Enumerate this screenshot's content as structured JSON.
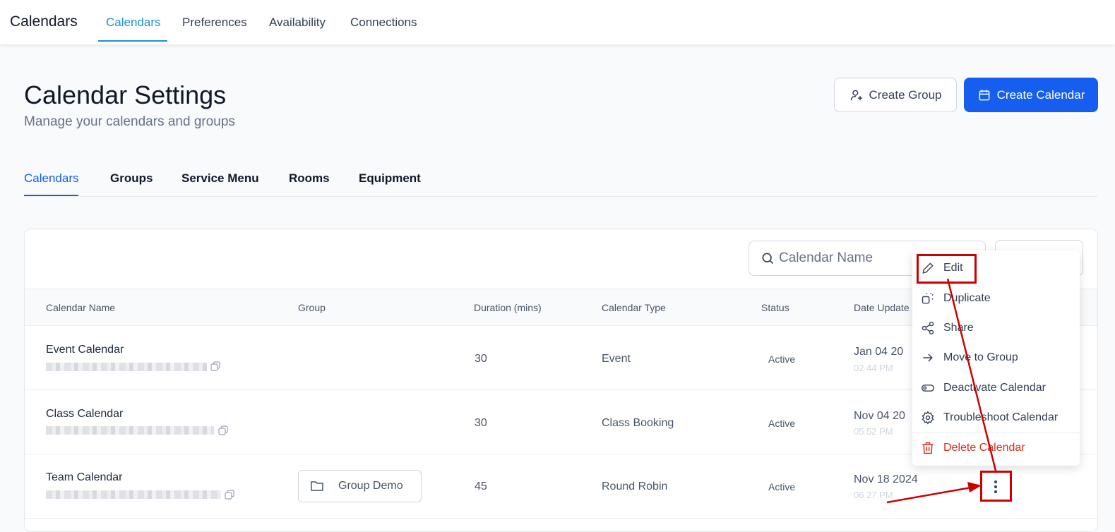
{
  "topnav": {
    "brand": "Calendars",
    "items": [
      {
        "label": "Calendars",
        "active": true
      },
      {
        "label": "Preferences"
      },
      {
        "label": "Availability"
      },
      {
        "label": "Connections"
      }
    ]
  },
  "header": {
    "title": "Calendar Settings",
    "subtitle": "Manage your calendars and groups",
    "create_group": "Create Group",
    "create_calendar": "Create Calendar"
  },
  "tabs": [
    {
      "label": "Calendars",
      "active": true
    },
    {
      "label": "Groups"
    },
    {
      "label": "Service Menu"
    },
    {
      "label": "Rooms"
    },
    {
      "label": "Equipment"
    }
  ],
  "search": {
    "placeholder": "Calendar Name"
  },
  "table": {
    "columns": [
      "Calendar Name",
      "Group",
      "Duration (mins)",
      "Calendar Type",
      "Status",
      "Date Update"
    ],
    "rows": [
      {
        "name": "Event Calendar",
        "group": "",
        "duration": "30",
        "type": "Event",
        "status": "Active",
        "date": "Jan 04 20",
        "time": "02 44 PM"
      },
      {
        "name": "Class Calendar",
        "group": "",
        "duration": "30",
        "type": "Class Booking",
        "status": "Active",
        "date": "Nov 04 20",
        "time": "05 52 PM"
      },
      {
        "name": "Team Calendar",
        "group": "Group Demo",
        "duration": "45",
        "type": "Round Robin",
        "status": "Active",
        "date": "Nov 18 2024",
        "time": "06 27 PM"
      }
    ]
  },
  "menu": {
    "items": [
      {
        "label": "Edit",
        "icon": "pencil-icon"
      },
      {
        "label": "Duplicate",
        "icon": "duplicate-icon"
      },
      {
        "label": "Share",
        "icon": "share-icon"
      },
      {
        "label": "Move to Group",
        "icon": "arrow-right-icon"
      },
      {
        "label": "Deactivate Calendar",
        "icon": "toggle-icon"
      },
      {
        "label": "Troubleshoot Calendar",
        "icon": "gear-icon"
      },
      {
        "label": "Delete Calendar",
        "icon": "trash-icon"
      }
    ]
  },
  "colors": {
    "primary": "#155eef",
    "nav_active": "#1e90d6",
    "danger": "#d92d20",
    "annotation": "#cc0000"
  }
}
